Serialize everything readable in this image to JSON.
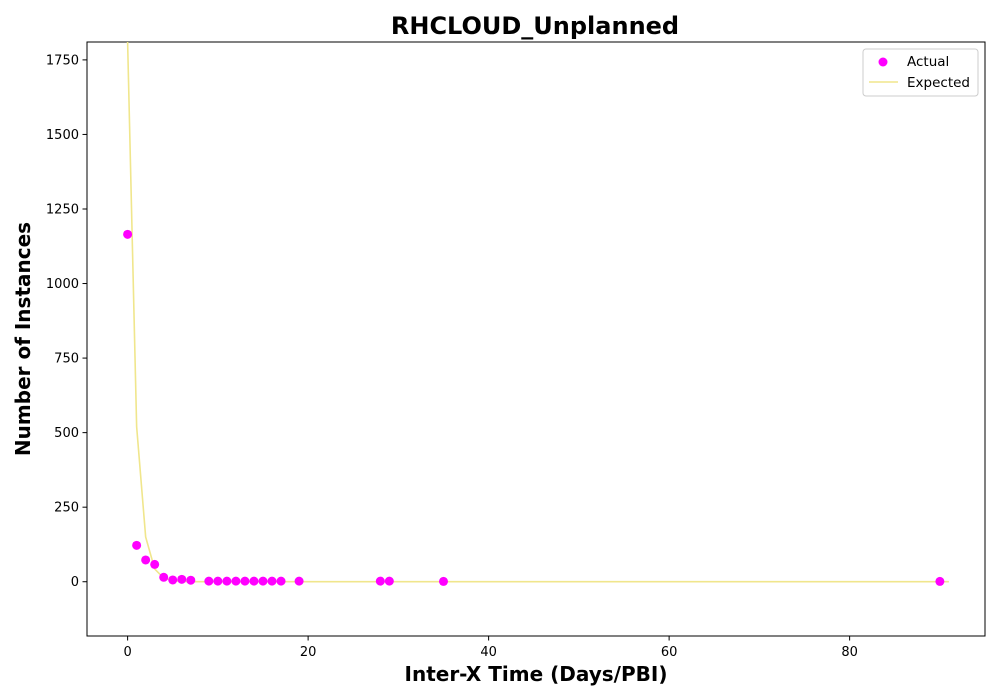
{
  "chart_data": {
    "type": "scatter",
    "title": "RHCLOUD_Unplanned",
    "xlabel": "Inter-X Time (Days/PBI)",
    "ylabel": "Number of Instances",
    "xlim": [
      -4.5,
      95
    ],
    "ylim": [
      -182,
      1810
    ],
    "x_ticks": [
      0,
      20,
      40,
      60,
      80
    ],
    "y_ticks": [
      0,
      250,
      500,
      750,
      1000,
      1250,
      1500,
      1750
    ],
    "grid": false,
    "legend_position": "upper right",
    "series": [
      {
        "name": "Actual",
        "kind": "scatter",
        "color": "#ff00ff",
        "points": [
          [
            0,
            1165
          ],
          [
            1,
            122
          ],
          [
            2,
            73
          ],
          [
            3,
            58
          ],
          [
            4,
            15
          ],
          [
            5,
            6
          ],
          [
            6,
            8
          ],
          [
            7,
            5
          ],
          [
            9,
            2
          ],
          [
            10,
            2
          ],
          [
            11,
            2
          ],
          [
            12,
            2
          ],
          [
            13,
            2
          ],
          [
            14,
            2
          ],
          [
            15,
            2
          ],
          [
            16,
            2
          ],
          [
            17,
            2
          ],
          [
            19,
            2
          ],
          [
            28,
            2
          ],
          [
            29,
            2
          ],
          [
            35,
            1
          ],
          [
            90,
            1
          ]
        ]
      },
      {
        "name": "Expected",
        "kind": "line",
        "color": "#f0e68c",
        "points": [
          [
            0,
            1810
          ],
          [
            1,
            520
          ],
          [
            2,
            150
          ],
          [
            3,
            43
          ],
          [
            4,
            12
          ],
          [
            5,
            4
          ],
          [
            6,
            1
          ],
          [
            7,
            0.3
          ],
          [
            8,
            0.1
          ],
          [
            10,
            0
          ],
          [
            20,
            0
          ],
          [
            40,
            0
          ],
          [
            60,
            0
          ],
          [
            80,
            0
          ],
          [
            91,
            0
          ]
        ]
      }
    ]
  }
}
